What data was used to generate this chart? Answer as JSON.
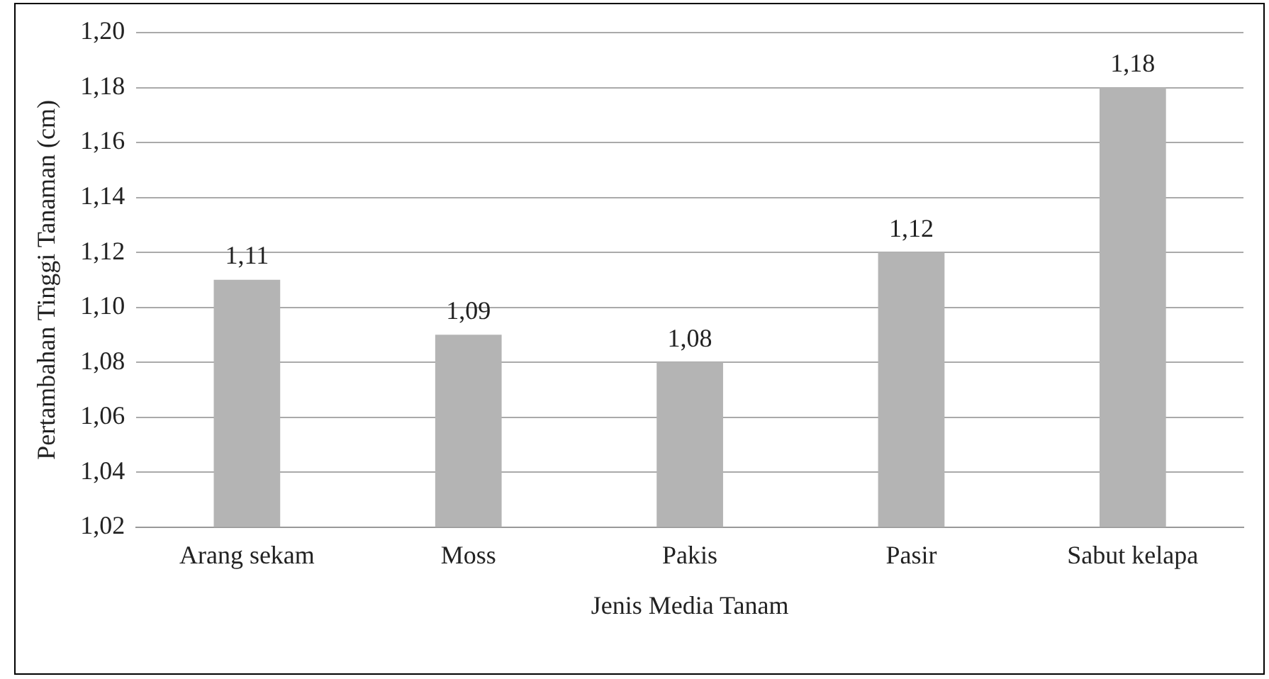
{
  "chart_data": {
    "type": "bar",
    "xlabel": "Jenis Media Tanam",
    "ylabel": "Pertambahan Tinggi Tanaman (cm)",
    "categories": [
      "Arang sekam",
      "Moss",
      "Pakis",
      "Pasir",
      "Sabut kelapa"
    ],
    "values": [
      1.11,
      1.09,
      1.08,
      1.12,
      1.18
    ],
    "value_labels": [
      "1,11",
      "1,09",
      "1,08",
      "1,12",
      "1,18"
    ],
    "color": "#b4b4b4",
    "ylim": [
      1.02,
      1.2
    ],
    "yticks": [
      {
        "value": 1.02,
        "label": "1,02"
      },
      {
        "value": 1.04,
        "label": "1,04"
      },
      {
        "value": 1.06,
        "label": "1,06"
      },
      {
        "value": 1.08,
        "label": "1,08"
      },
      {
        "value": 1.1,
        "label": "1,10"
      },
      {
        "value": 1.12,
        "label": "1,12"
      },
      {
        "value": 1.14,
        "label": "1,14"
      },
      {
        "value": 1.16,
        "label": "1,16"
      },
      {
        "value": 1.18,
        "label": "1,18"
      },
      {
        "value": 1.2,
        "label": "1,20"
      }
    ],
    "grid": "y",
    "legend": false
  }
}
